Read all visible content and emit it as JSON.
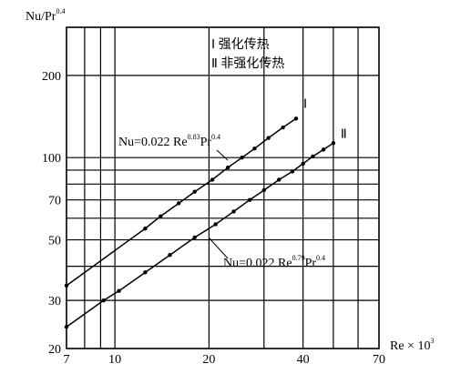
{
  "chart_data": {
    "type": "line",
    "y_label": [
      "Nu/Pr",
      "0.4"
    ],
    "x_label": [
      "Re × 10",
      "3"
    ],
    "legend_box": [
      "Ⅰ 强化传热",
      "Ⅱ 非强化传热"
    ],
    "log_x": true,
    "log_y": true,
    "grid": true,
    "xlim": [
      7,
      70
    ],
    "xticks": [
      7,
      10,
      20,
      40,
      70
    ],
    "xgrid": [
      8,
      9,
      30,
      50,
      60
    ],
    "ylim": [
      20,
      300
    ],
    "yticks": [
      20,
      30,
      50,
      70,
      100,
      200
    ],
    "ygrid": [
      40,
      60,
      80,
      90,
      300
    ],
    "series": [
      {
        "name": "Ⅰ",
        "color": "#000000",
        "annotation": [
          "Nu=0.022 Re",
          "0.83",
          "Pr",
          "0.4"
        ],
        "x": [
          7,
          12.5,
          14,
          16,
          18,
          20.5,
          23,
          25.5,
          28,
          31,
          34.5,
          38
        ],
        "values": [
          34,
          55,
          61,
          68,
          75,
          83,
          92,
          100,
          108,
          118,
          129,
          139
        ]
      },
      {
        "name": "Ⅱ",
        "color": "#000000",
        "annotation": [
          "Nu=0.022 Re",
          "0.79",
          "Pr",
          "0.4"
        ],
        "x": [
          7,
          9.2,
          10.3,
          12.5,
          15,
          18,
          21,
          24,
          27,
          30,
          33.5,
          37,
          40,
          43,
          46.5,
          50
        ],
        "values": [
          24,
          30,
          32.5,
          38,
          44,
          51,
          57,
          63.5,
          70,
          76,
          83,
          89,
          95,
          101,
          107,
          113
        ]
      }
    ]
  }
}
